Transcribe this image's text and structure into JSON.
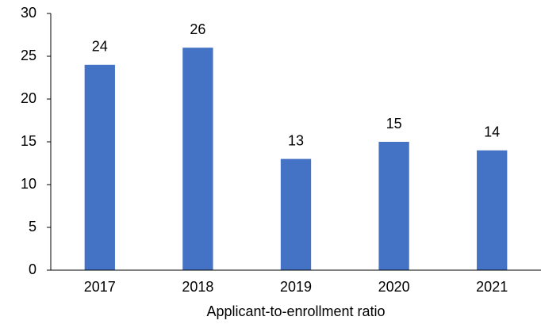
{
  "chart_data": {
    "type": "bar",
    "x_label": "Applicant-to-enrollment ratio",
    "categories": [
      "2017",
      "2018",
      "2019",
      "2020",
      "2021"
    ],
    "values": [
      24,
      26,
      13,
      15,
      14
    ],
    "color": "#4472c4",
    "ylim": [
      0,
      30
    ],
    "yticks": [
      0,
      5,
      10,
      15,
      20,
      25,
      30
    ],
    "grid": false,
    "data_labels": true
  }
}
